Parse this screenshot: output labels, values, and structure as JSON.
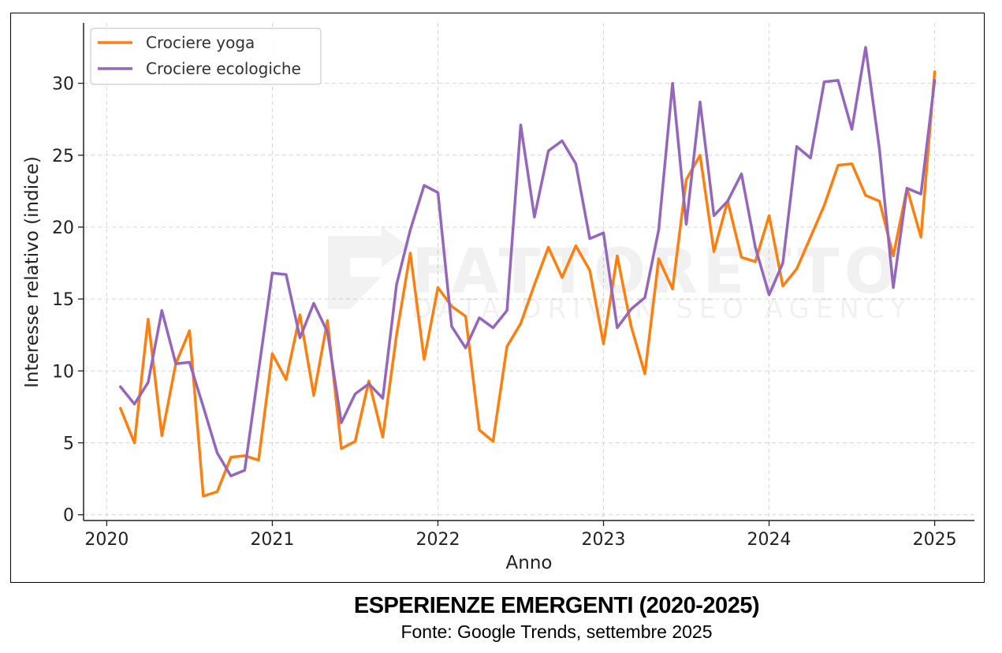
{
  "chart_data": {
    "type": "line",
    "xlabel": "Anno",
    "ylabel": "Interesse relativo (indice)",
    "xlim": [
      2019.86,
      2025.24
    ],
    "ylim": [
      -0.4,
      34.2
    ],
    "xticks": [
      2020,
      2021,
      2022,
      2023,
      2024,
      2025
    ],
    "yticks": [
      0,
      5,
      10,
      15,
      20,
      25,
      30
    ],
    "grid": true,
    "legend_position": "top-left",
    "x": [
      2020.083,
      2020.167,
      2020.25,
      2020.333,
      2020.417,
      2020.5,
      2020.583,
      2020.667,
      2020.75,
      2020.833,
      2020.917,
      2021.0,
      2021.083,
      2021.167,
      2021.25,
      2021.333,
      2021.417,
      2021.5,
      2021.583,
      2021.667,
      2021.75,
      2021.833,
      2021.917,
      2022.0,
      2022.083,
      2022.167,
      2022.25,
      2022.333,
      2022.417,
      2022.5,
      2022.583,
      2022.667,
      2022.75,
      2022.833,
      2022.917,
      2023.0,
      2023.083,
      2023.167,
      2023.25,
      2023.333,
      2023.417,
      2023.5,
      2023.583,
      2023.667,
      2023.75,
      2023.833,
      2023.917,
      2024.0,
      2024.083,
      2024.167,
      2024.25,
      2024.333,
      2024.417,
      2024.5,
      2024.583,
      2024.667,
      2024.75,
      2024.833,
      2024.917,
      2025.0
    ],
    "series": [
      {
        "name": "Crociere yoga",
        "color": "#ff7f0e",
        "values": [
          7.4,
          5.0,
          13.6,
          5.5,
          10.5,
          12.8,
          1.3,
          1.6,
          4.0,
          4.1,
          3.8,
          11.2,
          9.4,
          13.9,
          8.3,
          13.5,
          4.6,
          5.1,
          9.3,
          5.4,
          12.5,
          18.2,
          10.8,
          15.8,
          14.5,
          13.8,
          5.9,
          5.1,
          11.7,
          13.3,
          16.0,
          18.6,
          16.5,
          18.7,
          17.0,
          11.9,
          18.0,
          13.1,
          9.8,
          17.8,
          15.7,
          23.3,
          25.0,
          18.3,
          21.8,
          17.9,
          17.6,
          20.8,
          15.9,
          17.1,
          19.3,
          21.5,
          24.3,
          24.4,
          22.2,
          21.8,
          18.0,
          22.7,
          19.3,
          30.8
        ]
      },
      {
        "name": "Crociere ecologiche",
        "color": "#9467bd",
        "values": [
          8.9,
          7.7,
          9.2,
          14.2,
          10.5,
          10.6,
          7.5,
          4.3,
          2.7,
          3.1,
          10.0,
          16.8,
          16.7,
          12.3,
          14.7,
          12.7,
          6.4,
          8.4,
          9.1,
          8.1,
          16.0,
          19.8,
          22.9,
          22.4,
          13.1,
          11.6,
          13.7,
          13.0,
          14.2,
          27.1,
          20.7,
          25.3,
          26.0,
          24.4,
          19.2,
          19.6,
          13.0,
          14.3,
          15.1,
          19.8,
          30.0,
          20.2,
          28.7,
          20.8,
          21.8,
          23.7,
          18.6,
          15.3,
          17.5,
          25.6,
          24.8,
          30.1,
          30.2,
          26.8,
          32.5,
          25.4,
          15.8,
          22.7,
          22.3,
          30.2
        ]
      }
    ]
  },
  "watermark": {
    "brand": "FATTORETTO",
    "tagline": "DATA DRIVEN SEO AGENCY"
  },
  "caption": {
    "title": "ESPERIENZE EMERGENTI (2020-2025)",
    "source": "Fonte: Google Trends, settembre 2025"
  }
}
